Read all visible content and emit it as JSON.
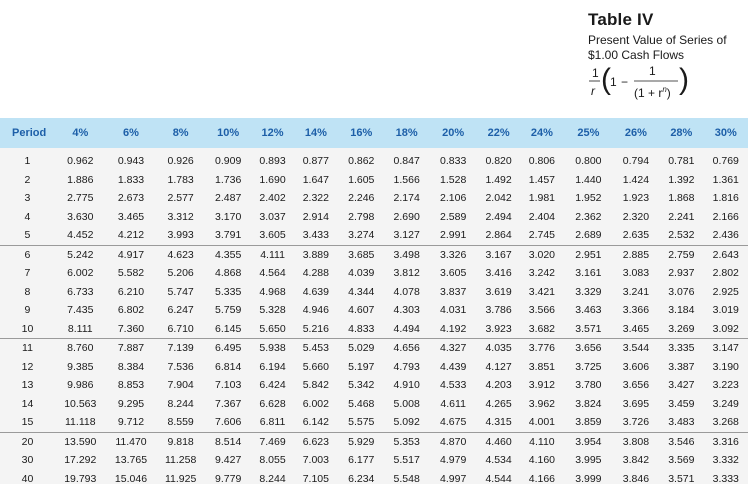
{
  "header": {
    "title": "Table IV",
    "subtitle_line1": "Present Value of Series of",
    "subtitle_line2": "$1.00 Cash Flows",
    "formula": {
      "outer_numerator": "1",
      "outer_denominator": "r",
      "open_paren": "(",
      "one": "1",
      "minus": "−",
      "inner_numerator": "1",
      "inner_denominator": "(1 + r",
      "exponent": "n",
      "inner_close": ")",
      "close_paren": ")"
    }
  },
  "table": {
    "columns": [
      "Period",
      "4%",
      "6%",
      "8%",
      "10%",
      "12%",
      "14%",
      "16%",
      "18%",
      "20%",
      "22%",
      "24%",
      "25%",
      "26%",
      "28%",
      "30%"
    ],
    "rows": [
      [
        "1",
        "0.962",
        "0.943",
        "0.926",
        "0.909",
        "0.893",
        "0.877",
        "0.862",
        "0.847",
        "0.833",
        "0.820",
        "0.806",
        "0.800",
        "0.794",
        "0.781",
        "0.769"
      ],
      [
        "2",
        "1.886",
        "1.833",
        "1.783",
        "1.736",
        "1.690",
        "1.647",
        "1.605",
        "1.566",
        "1.528",
        "1.492",
        "1.457",
        "1.440",
        "1.424",
        "1.392",
        "1.361"
      ],
      [
        "3",
        "2.775",
        "2.673",
        "2.577",
        "2.487",
        "2.402",
        "2.322",
        "2.246",
        "2.174",
        "2.106",
        "2.042",
        "1.981",
        "1.952",
        "1.923",
        "1.868",
        "1.816"
      ],
      [
        "4",
        "3.630",
        "3.465",
        "3.312",
        "3.170",
        "3.037",
        "2.914",
        "2.798",
        "2.690",
        "2.589",
        "2.494",
        "2.404",
        "2.362",
        "2.320",
        "2.241",
        "2.166"
      ],
      [
        "5",
        "4.452",
        "4.212",
        "3.993",
        "3.791",
        "3.605",
        "3.433",
        "3.274",
        "3.127",
        "2.991",
        "2.864",
        "2.745",
        "2.689",
        "2.635",
        "2.532",
        "2.436"
      ],
      [
        "6",
        "5.242",
        "4.917",
        "4.623",
        "4.355",
        "4.111",
        "3.889",
        "3.685",
        "3.498",
        "3.326",
        "3.167",
        "3.020",
        "2.951",
        "2.885",
        "2.759",
        "2.643"
      ],
      [
        "7",
        "6.002",
        "5.582",
        "5.206",
        "4.868",
        "4.564",
        "4.288",
        "4.039",
        "3.812",
        "3.605",
        "3.416",
        "3.242",
        "3.161",
        "3.083",
        "2.937",
        "2.802"
      ],
      [
        "8",
        "6.733",
        "6.210",
        "5.747",
        "5.335",
        "4.968",
        "4.639",
        "4.344",
        "4.078",
        "3.837",
        "3.619",
        "3.421",
        "3.329",
        "3.241",
        "3.076",
        "2.925"
      ],
      [
        "9",
        "7.435",
        "6.802",
        "6.247",
        "5.759",
        "5.328",
        "4.946",
        "4.607",
        "4.303",
        "4.031",
        "3.786",
        "3.566",
        "3.463",
        "3.366",
        "3.184",
        "3.019"
      ],
      [
        "10",
        "8.111",
        "7.360",
        "6.710",
        "6.145",
        "5.650",
        "5.216",
        "4.833",
        "4.494",
        "4.192",
        "3.923",
        "3.682",
        "3.571",
        "3.465",
        "3.269",
        "3.092"
      ],
      [
        "11",
        "8.760",
        "7.887",
        "7.139",
        "6.495",
        "5.938",
        "5.453",
        "5.029",
        "4.656",
        "4.327",
        "4.035",
        "3.776",
        "3.656",
        "3.544",
        "3.335",
        "3.147"
      ],
      [
        "12",
        "9.385",
        "8.384",
        "7.536",
        "6.814",
        "6.194",
        "5.660",
        "5.197",
        "4.793",
        "4.439",
        "4.127",
        "3.851",
        "3.725",
        "3.606",
        "3.387",
        "3.190"
      ],
      [
        "13",
        "9.986",
        "8.853",
        "7.904",
        "7.103",
        "6.424",
        "5.842",
        "5.342",
        "4.910",
        "4.533",
        "4.203",
        "3.912",
        "3.780",
        "3.656",
        "3.427",
        "3.223"
      ],
      [
        "14",
        "10.563",
        "9.295",
        "8.244",
        "7.367",
        "6.628",
        "6.002",
        "5.468",
        "5.008",
        "4.611",
        "4.265",
        "3.962",
        "3.824",
        "3.695",
        "3.459",
        "3.249"
      ],
      [
        "15",
        "11.118",
        "9.712",
        "8.559",
        "7.606",
        "6.811",
        "6.142",
        "5.575",
        "5.092",
        "4.675",
        "4.315",
        "4.001",
        "3.859",
        "3.726",
        "3.483",
        "3.268"
      ],
      [
        "20",
        "13.590",
        "11.470",
        "9.818",
        "8.514",
        "7.469",
        "6.623",
        "5.929",
        "5.353",
        "4.870",
        "4.460",
        "4.110",
        "3.954",
        "3.808",
        "3.546",
        "3.316"
      ],
      [
        "30",
        "17.292",
        "13.765",
        "11.258",
        "9.427",
        "8.055",
        "7.003",
        "6.177",
        "5.517",
        "4.979",
        "4.534",
        "4.160",
        "3.995",
        "3.842",
        "3.569",
        "3.332"
      ],
      [
        "40",
        "19.793",
        "15.046",
        "11.925",
        "9.779",
        "8.244",
        "7.105",
        "6.234",
        "5.548",
        "4.997",
        "4.544",
        "4.166",
        "3.999",
        "3.846",
        "3.571",
        "3.333"
      ]
    ],
    "group_start_rows": [
      0,
      5,
      10,
      15
    ]
  }
}
